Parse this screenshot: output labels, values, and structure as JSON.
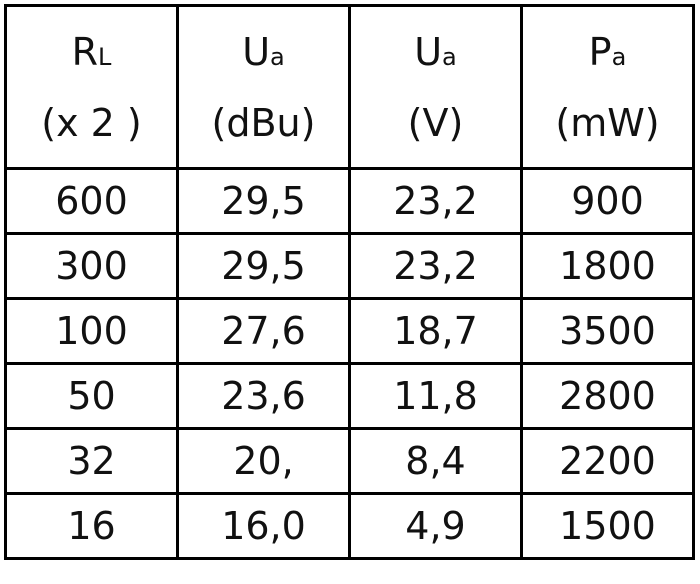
{
  "table": {
    "header": [
      {
        "symbol": "R",
        "subscript": "L",
        "unit": "(x 2 )"
      },
      {
        "symbol": "U",
        "subscript": "a",
        "unit": "(dBu)"
      },
      {
        "symbol": "U",
        "subscript": "a",
        "unit": "(V)"
      },
      {
        "symbol": "P",
        "subscript": "a",
        "unit": "(mW)"
      }
    ],
    "rows": [
      [
        "600",
        "29,5",
        "23,2",
        "900"
      ],
      [
        "300",
        "29,5",
        "23,2",
        "1800"
      ],
      [
        "100",
        "27,6",
        "18,7",
        "3500"
      ],
      [
        "50",
        "23,6",
        "11,8",
        "2800"
      ],
      [
        "32",
        "20,",
        "8,4",
        "2200"
      ],
      [
        "16",
        "16,0",
        "4,9",
        "1500"
      ]
    ]
  }
}
